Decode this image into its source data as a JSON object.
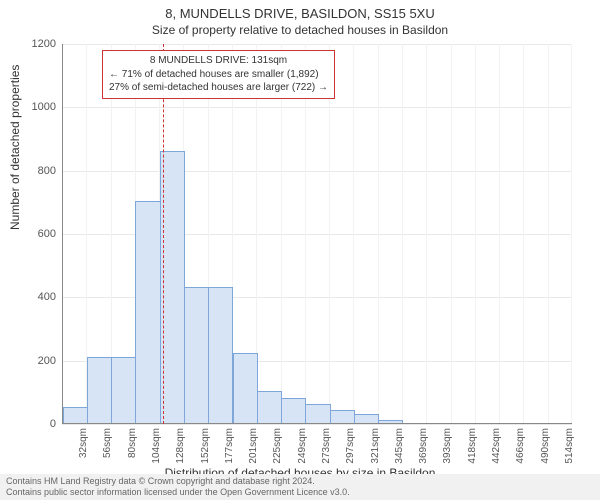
{
  "header": {
    "address": "8, MUNDELLS DRIVE, BASILDON, SS15 5XU",
    "subtitle": "Size of property relative to detached houses in Basildon"
  },
  "chart": {
    "type": "histogram",
    "background_color": "#ffffff",
    "grid_color": "#e8e8e8",
    "bar_fill": "#d6e4f5",
    "bar_stroke": "#7fa6d9",
    "bar_width_ratio": 0.95,
    "y": {
      "title": "Number of detached properties",
      "min": 0,
      "max": 1200,
      "ticks": [
        0,
        200,
        400,
        600,
        800,
        1000,
        1200
      ]
    },
    "x": {
      "title": "Distribution of detached houses by size in Basildon",
      "labels": [
        "32sqm",
        "56sqm",
        "80sqm",
        "104sqm",
        "128sqm",
        "152sqm",
        "177sqm",
        "201sqm",
        "225sqm",
        "249sqm",
        "273sqm",
        "297sqm",
        "321sqm",
        "345sqm",
        "369sqm",
        "393sqm",
        "418sqm",
        "442sqm",
        "466sqm",
        "490sqm",
        "514sqm"
      ]
    },
    "values": [
      50,
      210,
      210,
      700,
      860,
      430,
      430,
      220,
      100,
      80,
      60,
      40,
      30,
      10,
      0,
      0,
      0,
      0,
      0,
      0,
      0
    ],
    "marker": {
      "color": "#cc3333",
      "bin_index": 4,
      "lines": [
        "8 MUNDELLS DRIVE: 131sqm",
        "← 71% of detached houses are smaller (1,892)",
        "27% of semi-detached houses are larger (722) →"
      ]
    }
  },
  "footer": {
    "line1": "Contains HM Land Registry data © Crown copyright and database right 2024.",
    "line2": "Contains public sector information licensed under the Open Government Licence v3.0."
  }
}
